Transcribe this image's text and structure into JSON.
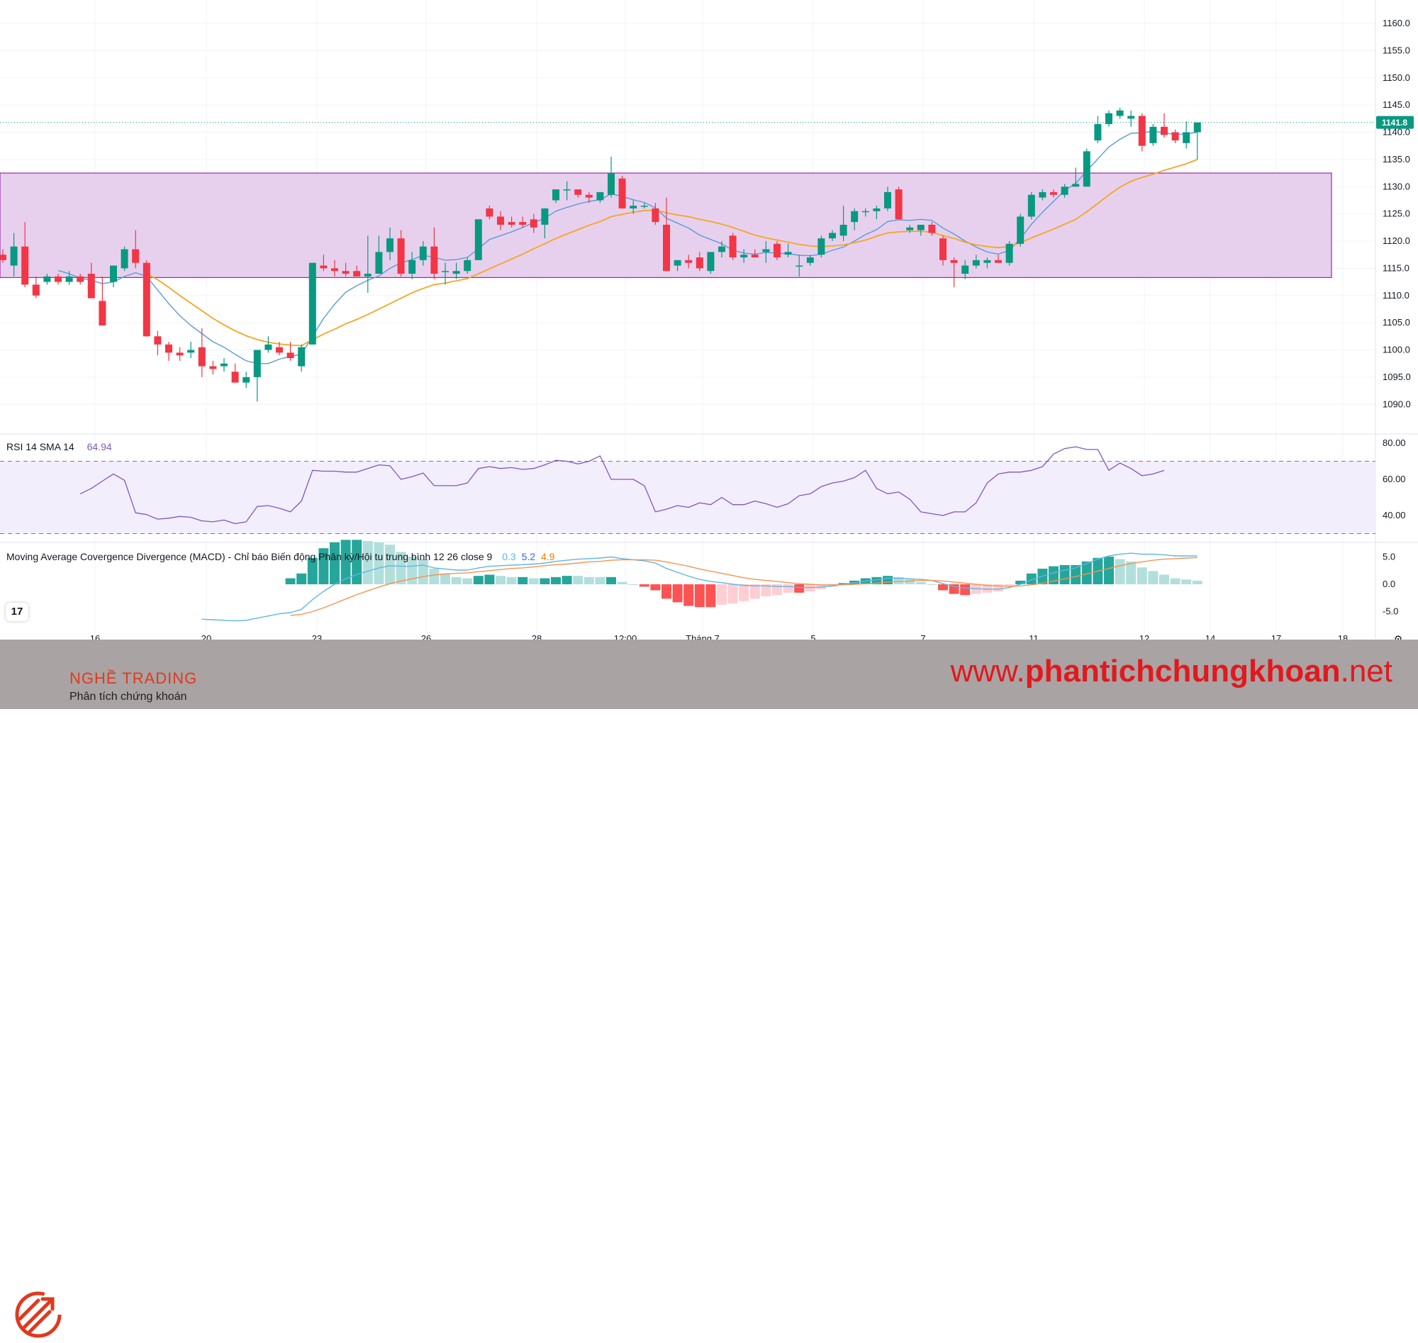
{
  "chart_data": {
    "type": "candlestick",
    "price_axis": {
      "ticks": [
        "1160.0",
        "1155.0",
        "1150.0",
        "1145.0",
        "1140.0",
        "1135.0",
        "1130.0",
        "1125.0",
        "1120.0",
        "1115.0",
        "1110.0",
        "1105.0",
        "1100.0",
        "1095.0",
        "1090.0"
      ],
      "ylim": [
        1083,
        1164
      ],
      "last_price_label": "1141.8",
      "last_price": 1141.8
    },
    "x_axis_labels": [
      "16",
      "20",
      "23",
      "26",
      "28",
      "12:00",
      "Tháng 7",
      "5",
      "7",
      "11",
      "12",
      "14",
      "17",
      "18"
    ],
    "zone": {
      "low": 1113.3,
      "high": 1132.5,
      "color": "#e7d0ee",
      "border": "#9c27b0"
    },
    "colors": {
      "up": "#089981",
      "down": "#f23645",
      "ma_fast": "#5b9bd5",
      "ma_slow": "#f5a623",
      "rsi": "#7e57c2",
      "macd_line": "#5eb6e4",
      "signal_line": "#f59352"
    },
    "candles": [
      [
        1117.5,
        1118.5,
        1116.0,
        1116.5
      ],
      [
        1115.5,
        1121.5,
        1113.5,
        1119.0
      ],
      [
        1119.0,
        1123.5,
        1111.5,
        1112.0
      ],
      [
        1112.0,
        1113.5,
        1109.5,
        1110.0
      ],
      [
        1112.5,
        1114.0,
        1112.0,
        1113.5
      ],
      [
        1113.5,
        1114.0,
        1112.0,
        1112.5
      ],
      [
        1112.5,
        1114.5,
        1112.0,
        1113.5
      ],
      [
        1113.5,
        1114.0,
        1112.0,
        1112.5
      ],
      [
        1114.0,
        1116.0,
        1109.5,
        1109.5
      ],
      [
        1109.0,
        1113.5,
        1104.5,
        1104.5
      ],
      [
        1112.5,
        1115.5,
        1111.5,
        1115.5
      ],
      [
        1115.0,
        1119.0,
        1114.5,
        1118.5
      ],
      [
        1118.5,
        1122.0,
        1115.0,
        1116.0
      ],
      [
        1116.0,
        1116.5,
        1102.5,
        1102.5
      ],
      [
        1102.5,
        1103.5,
        1099.0,
        1101.0
      ],
      [
        1101.0,
        1101.5,
        1098.0,
        1099.5
      ],
      [
        1099.5,
        1100.5,
        1098.0,
        1099.0
      ],
      [
        1099.5,
        1101.5,
        1098.5,
        1100.0
      ],
      [
        1100.5,
        1104.0,
        1095.0,
        1097.0
      ],
      [
        1097.0,
        1098.0,
        1095.5,
        1096.5
      ],
      [
        1097.0,
        1098.5,
        1096.0,
        1097.5
      ],
      [
        1096.0,
        1097.5,
        1094.0,
        1094.0
      ],
      [
        1094.0,
        1096.0,
        1093.0,
        1095.0
      ],
      [
        1095.0,
        1100.0,
        1090.5,
        1100.0
      ],
      [
        1100.0,
        1102.5,
        1099.5,
        1101.0
      ],
      [
        1100.5,
        1101.5,
        1099.0,
        1099.5
      ],
      [
        1099.5,
        1101.5,
        1098.0,
        1098.5
      ],
      [
        1097.0,
        1101.0,
        1096.0,
        1100.5
      ],
      [
        1101.0,
        1116.0,
        1101.0,
        1116.0
      ],
      [
        1115.5,
        1117.5,
        1114.5,
        1115.0
      ],
      [
        1115.0,
        1116.5,
        1113.5,
        1114.5
      ],
      [
        1114.5,
        1116.0,
        1113.5,
        1114.0
      ],
      [
        1114.5,
        1115.5,
        1113.5,
        1113.5
      ],
      [
        1113.5,
        1121.0,
        1110.5,
        1114.0
      ],
      [
        1114.0,
        1121.0,
        1114.0,
        1118.0
      ],
      [
        1118.0,
        1122.5,
        1116.5,
        1120.5
      ],
      [
        1120.5,
        1122.0,
        1113.5,
        1114.0
      ],
      [
        1114.0,
        1118.0,
        1113.0,
        1116.5
      ],
      [
        1116.5,
        1120.0,
        1115.5,
        1119.0
      ],
      [
        1119.0,
        1122.5,
        1113.0,
        1114.0
      ],
      [
        1114.5,
        1116.0,
        1112.0,
        1114.5
      ],
      [
        1114.0,
        1116.0,
        1113.0,
        1114.5
      ],
      [
        1114.5,
        1117.0,
        1114.0,
        1116.5
      ],
      [
        1116.5,
        1124.0,
        1116.5,
        1124.0
      ],
      [
        1126.0,
        1126.5,
        1124.0,
        1124.5
      ],
      [
        1124.5,
        1125.5,
        1122.0,
        1123.0
      ],
      [
        1123.5,
        1124.5,
        1122.5,
        1123.0
      ],
      [
        1123.5,
        1124.5,
        1122.5,
        1123.0
      ],
      [
        1124.0,
        1125.0,
        1121.5,
        1122.5
      ],
      [
        1123.0,
        1126.0,
        1120.5,
        1126.0
      ],
      [
        1127.5,
        1129.5,
        1127.0,
        1129.5
      ],
      [
        1129.5,
        1131.0,
        1127.5,
        1129.5
      ],
      [
        1129.5,
        1129.5,
        1128.0,
        1128.5
      ],
      [
        1128.5,
        1129.0,
        1127.0,
        1128.0
      ],
      [
        1127.5,
        1129.0,
        1127.0,
        1129.0
      ],
      [
        1128.5,
        1135.5,
        1128.0,
        1132.5
      ],
      [
        1131.5,
        1132.0,
        1126.0,
        1126.0
      ],
      [
        1126.0,
        1127.5,
        1125.0,
        1126.5
      ],
      [
        1126.5,
        1127.0,
        1126.0,
        1126.5
      ],
      [
        1126.0,
        1127.0,
        1123.0,
        1123.5
      ],
      [
        1123.0,
        1128.0,
        1114.5,
        1114.5
      ],
      [
        1115.5,
        1116.5,
        1114.5,
        1116.5
      ],
      [
        1116.5,
        1117.5,
        1115.0,
        1116.0
      ],
      [
        1117.0,
        1118.0,
        1114.5,
        1115.0
      ],
      [
        1114.5,
        1118.0,
        1114.0,
        1118.0
      ],
      [
        1118.0,
        1120.0,
        1117.0,
        1119.0
      ],
      [
        1121.0,
        1121.5,
        1116.5,
        1117.0
      ],
      [
        1117.0,
        1118.5,
        1116.0,
        1117.5
      ],
      [
        1117.5,
        1118.5,
        1117.0,
        1117.0
      ],
      [
        1118.0,
        1120.0,
        1116.0,
        1118.5
      ],
      [
        1119.5,
        1120.0,
        1116.5,
        1117.0
      ],
      [
        1117.5,
        1119.5,
        1117.0,
        1118.0
      ],
      [
        1115.5,
        1117.5,
        1113.5,
        1115.5
      ],
      [
        1116.0,
        1117.5,
        1115.5,
        1117.0
      ],
      [
        1117.5,
        1121.0,
        1117.0,
        1120.5
      ],
      [
        1120.5,
        1122.0,
        1120.0,
        1121.5
      ],
      [
        1121.0,
        1126.5,
        1120.0,
        1123.0
      ],
      [
        1123.5,
        1126.0,
        1122.0,
        1125.5
      ],
      [
        1125.5,
        1126.0,
        1124.5,
        1125.5
      ],
      [
        1125.5,
        1126.5,
        1124.0,
        1126.0
      ],
      [
        1126.0,
        1130.0,
        1125.5,
        1129.0
      ],
      [
        1129.5,
        1130.0,
        1124.0,
        1124.0
      ],
      [
        1122.0,
        1123.0,
        1121.5,
        1122.5
      ],
      [
        1122.0,
        1123.0,
        1121.0,
        1123.0
      ],
      [
        1123.0,
        1123.5,
        1121.0,
        1121.5
      ],
      [
        1120.5,
        1121.0,
        1115.5,
        1116.5
      ],
      [
        1116.5,
        1117.0,
        1111.5,
        1116.0
      ],
      [
        1114.0,
        1116.5,
        1113.0,
        1115.5
      ],
      [
        1115.5,
        1117.5,
        1115.0,
        1116.5
      ],
      [
        1116.0,
        1117.0,
        1115.0,
        1116.5
      ],
      [
        1116.5,
        1117.5,
        1116.0,
        1116.0
      ],
      [
        1116.0,
        1120.0,
        1115.5,
        1119.5
      ],
      [
        1119.5,
        1125.0,
        1119.0,
        1124.5
      ],
      [
        1124.5,
        1129.0,
        1124.0,
        1128.5
      ],
      [
        1128.0,
        1129.5,
        1127.5,
        1129.0
      ],
      [
        1129.0,
        1129.5,
        1128.0,
        1128.5
      ],
      [
        1128.5,
        1130.5,
        1128.0,
        1130.0
      ],
      [
        1130.0,
        1133.5,
        1130.0,
        1130.5
      ],
      [
        1130.0,
        1137.0,
        1130.0,
        1136.5
      ],
      [
        1138.5,
        1143.0,
        1138.0,
        1141.5
      ],
      [
        1141.5,
        1144.0,
        1141.0,
        1143.5
      ],
      [
        1143.0,
        1144.5,
        1142.5,
        1144.0
      ],
      [
        1142.5,
        1144.0,
        1141.0,
        1143.0
      ],
      [
        1143.0,
        1143.5,
        1136.5,
        1137.5
      ],
      [
        1138.0,
        1141.5,
        1137.5,
        1141.0
      ],
      [
        1141.0,
        1143.5,
        1139.0,
        1139.5
      ],
      [
        1140.0,
        1140.5,
        1138.0,
        1138.5
      ],
      [
        1138.0,
        1142.0,
        1137.0,
        1140.0
      ],
      [
        1140.0,
        1141.5,
        1135.0,
        1141.8
      ]
    ],
    "ma_fast": [
      null,
      null,
      null,
      null,
      null,
      1114.6,
      1114.0,
      1113.2,
      1112.8,
      1112.2,
      1112.5,
      1113.5,
      1114.2,
      1113.5,
      1111.0,
      1108.5,
      1106.3,
      1104.5,
      1103.0,
      1101.5,
      1100.5,
      1099.2,
      1098.0,
      1097.5,
      1097.5,
      1098.3,
      1098.8,
      1099.2,
      1102.5,
      1105.8,
      1108.4,
      1110.6,
      1111.8,
      1112.8,
      1113.6,
      1115.0,
      1116.0,
      1116.6,
      1117.4,
      1117.0,
      1116.5,
      1116.6,
      1117.0,
      1118.6,
      1120.3,
      1121.0,
      1121.7,
      1122.5,
      1123.4,
      1124.2,
      1125.5,
      1126.2,
      1126.8,
      1127.3,
      1127.6,
      1128.7,
      1128.2,
      1127.6,
      1127.1,
      1126.1,
      1124.2,
      1123.3,
      1122.4,
      1121.1,
      1120.3,
      1119.5,
      1118.3,
      1117.8,
      1117.6,
      1117.9,
      1117.8,
      1117.7,
      1117.4,
      1117.3,
      1117.6,
      1118.3,
      1118.9,
      1120.0,
      1121.2,
      1122.1,
      1123.6,
      1123.9,
      1123.8,
      1124.0,
      1123.8,
      1122.4,
      1121.3,
      1120.0,
      1118.9,
      1118.0,
      1117.6,
      1118.3,
      1120.4,
      1123.1,
      1125.3,
      1127.3,
      1129.3,
      1130.6,
      1132.9,
      1135.1,
      1137.3,
      1138.7,
      1139.8,
      1139.9,
      1140.2,
      1139.9,
      1139.6,
      1139.7,
      1140.0
    ],
    "ma_slow": [
      null,
      null,
      null,
      null,
      null,
      null,
      null,
      null,
      null,
      null,
      null,
      null,
      null,
      1114.0,
      1112.9,
      1111.5,
      1110.0,
      1108.6,
      1107.2,
      1105.8,
      1104.6,
      1103.5,
      1102.6,
      1101.9,
      1101.4,
      1101.1,
      1100.9,
      1100.8,
      1101.9,
      1102.9,
      1103.8,
      1104.8,
      1105.6,
      1106.5,
      1107.5,
      1108.5,
      1109.5,
      1110.5,
      1111.3,
      1112.0,
      1112.3,
      1112.7,
      1113.1,
      1114.0,
      1114.9,
      1115.8,
      1116.7,
      1117.6,
      1118.6,
      1119.5,
      1120.5,
      1121.3,
      1122.1,
      1122.9,
      1123.6,
      1124.5,
      1124.9,
      1125.3,
      1125.6,
      1125.7,
      1125.2,
      1124.8,
      1124.5,
      1124.0,
      1123.6,
      1123.1,
      1122.5,
      1121.8,
      1121.1,
      1120.6,
      1120.2,
      1119.8,
      1119.4,
      1119.1,
      1119.0,
      1119.1,
      1119.3,
      1119.7,
      1120.2,
      1120.9,
      1121.5,
      1121.7,
      1121.8,
      1121.8,
      1121.6,
      1121.0,
      1120.5,
      1119.8,
      1119.3,
      1119.0,
      1118.8,
      1119.0,
      1119.7,
      1120.6,
      1121.4,
      1122.2,
      1123.1,
      1124.0,
      1125.4,
      1126.9,
      1128.5,
      1129.9,
      1131.0,
      1131.7,
      1132.3,
      1133.0,
      1133.6,
      1134.2,
      1135.0
    ],
    "rsi": {
      "label": "RSI 14 SMA 14",
      "value_label": "64.94",
      "ticks": [
        "80.00",
        "60.00",
        "40.00"
      ],
      "ylim": [
        25,
        82
      ],
      "band": [
        30,
        70
      ],
      "values": [
        null,
        null,
        null,
        null,
        null,
        null,
        null,
        52.0,
        55.0,
        59.0,
        63.0,
        59.5,
        41.5,
        40.5,
        38.0,
        38.5,
        39.5,
        39.0,
        37.0,
        36.5,
        37.5,
        35.5,
        36.5,
        45.0,
        45.5,
        44.0,
        42.0,
        48.0,
        65.0,
        64.5,
        64.5,
        64.0,
        64.0,
        66.0,
        68.0,
        67.5,
        60.0,
        61.5,
        63.5,
        56.5,
        56.5,
        56.5,
        58.0,
        66.0,
        67.0,
        66.0,
        66.5,
        65.5,
        66.0,
        68.0,
        70.5,
        70.0,
        68.5,
        70.0,
        73.0,
        60.0,
        60.0,
        60.0,
        56.5,
        42.0,
        43.5,
        45.5,
        44.5,
        47.0,
        46.0,
        50.0,
        46.0,
        46.0,
        48.0,
        46.5,
        44.5,
        46.5,
        51.0,
        52.0,
        56.0,
        58.0,
        59.0,
        61.0,
        65.0,
        55.0,
        52.0,
        53.0,
        49.0,
        42.0,
        41.0,
        40.0,
        42.0,
        42.0,
        47.0,
        58.0,
        63.0,
        64.0,
        64.0,
        65.0,
        67.0,
        74.0,
        77.0,
        78.0,
        76.5,
        76.5,
        65.0,
        69.0,
        66.0,
        62.0,
        63.0,
        64.94
      ]
    },
    "macd": {
      "label": "Moving Average Covergence Divergence (MACD) - Chỉ báo Biến động Phân kỳ/Hội tu trung bình 12 26 close 9",
      "values_label": [
        "0.3",
        "5.2",
        "4.9"
      ],
      "ticks": [
        "5.0",
        "0.0",
        "-5.0"
      ],
      "ylim": [
        -8,
        7
      ],
      "macd_line": [
        null,
        null,
        null,
        null,
        null,
        null,
        null,
        null,
        null,
        null,
        null,
        null,
        null,
        null,
        null,
        null,
        null,
        null,
        -6.4,
        -6.5,
        -6.6,
        -6.7,
        -6.6,
        -6.2,
        -5.8,
        -5.4,
        -5.2,
        -4.6,
        -2.8,
        -1.3,
        0.0,
        1.0,
        1.8,
        2.4,
        3.0,
        3.4,
        3.3,
        3.3,
        3.5,
        3.0,
        2.8,
        2.6,
        2.6,
        3.0,
        3.3,
        3.4,
        3.5,
        3.6,
        3.7,
        3.9,
        4.2,
        4.4,
        4.6,
        4.7,
        4.8,
        5.0,
        4.7,
        4.5,
        4.3,
        3.9,
        2.9,
        2.2,
        1.5,
        0.9,
        0.5,
        0.3,
        0.0,
        -0.2,
        -0.3,
        -0.3,
        -0.4,
        -0.4,
        -0.6,
        -0.6,
        -0.5,
        -0.3,
        0.0,
        0.3,
        0.6,
        0.8,
        1.1,
        1.1,
        1.0,
        0.9,
        0.7,
        0.1,
        -0.4,
        -0.7,
        -0.8,
        -0.9,
        -0.9,
        -0.6,
        0.0,
        0.8,
        1.5,
        2.1,
        2.6,
        3.0,
        3.8,
        4.6,
        5.2,
        5.5,
        5.7,
        5.5,
        5.5,
        5.4,
        5.2,
        5.2,
        5.2
      ],
      "signal_line": [
        null,
        null,
        null,
        null,
        null,
        null,
        null,
        null,
        null,
        null,
        null,
        null,
        null,
        null,
        null,
        null,
        null,
        null,
        null,
        null,
        null,
        null,
        null,
        null,
        null,
        null,
        -5.7,
        -5.5,
        -5.0,
        -4.3,
        -3.5,
        -2.7,
        -1.9,
        -1.2,
        -0.5,
        0.1,
        0.6,
        1.0,
        1.4,
        1.7,
        1.9,
        2.0,
        2.1,
        2.3,
        2.5,
        2.7,
        2.9,
        3.0,
        3.2,
        3.4,
        3.6,
        3.7,
        3.9,
        4.1,
        4.2,
        4.4,
        4.5,
        4.5,
        4.5,
        4.4,
        4.1,
        3.7,
        3.3,
        2.8,
        2.4,
        2.0,
        1.6,
        1.2,
        0.9,
        0.7,
        0.5,
        0.3,
        0.1,
        0.0,
        -0.1,
        -0.1,
        -0.1,
        0.0,
        0.1,
        0.2,
        0.4,
        0.5,
        0.6,
        0.7,
        0.7,
        0.6,
        0.4,
        0.2,
        0.0,
        -0.2,
        -0.3,
        -0.4,
        -0.3,
        -0.1,
        0.2,
        0.6,
        1.0,
        1.4,
        1.9,
        2.4,
        2.9,
        3.4,
        3.8,
        4.1,
        4.4,
        4.6,
        4.7,
        4.8,
        4.9
      ]
    }
  },
  "branding": {
    "brand_name": "NGHỀ TRADING",
    "brand_sub": "Phân tích chứng khoán",
    "url_prefix": "www.",
    "url_bold": "phantichchungkhoan",
    "url_suffix": ".net",
    "tv_logo": "17"
  }
}
